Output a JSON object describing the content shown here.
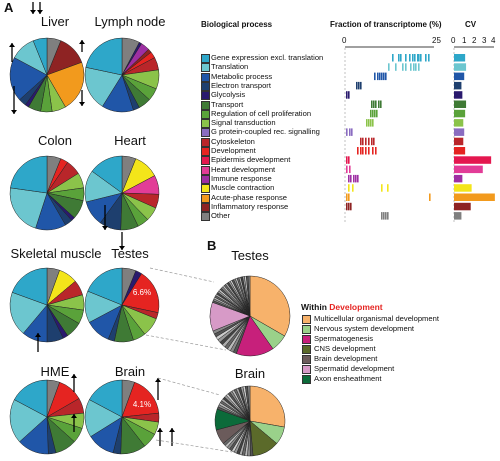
{
  "panel_a": "A",
  "panel_b": "B",
  "tissues": [
    {
      "name": "Liver",
      "label": ""
    },
    {
      "name": "Lymph node",
      "label": ""
    },
    {
      "name": "Colon",
      "label": ""
    },
    {
      "name": "Heart",
      "label": ""
    },
    {
      "name": "Skeletal muscle",
      "label": ""
    },
    {
      "name": "Testes",
      "label": "6.6%"
    },
    {
      "name": "HME",
      "label": ""
    },
    {
      "name": "Brain",
      "label": "4.1%"
    }
  ],
  "table": {
    "col_process": "Biological process",
    "col_fraction": "Fraction of transcriptome (%)",
    "col_cv": "CV",
    "fraction_ticks": [
      "0",
      "25"
    ],
    "cv_ticks": [
      "0",
      "1",
      "2",
      "3",
      "4"
    ]
  },
  "processes": [
    {
      "label": "Gene expression excl. translation",
      "color": "#2ea7c9"
    },
    {
      "label": "Translation",
      "color": "#6cc6cf"
    },
    {
      "label": "Metabolic process",
      "color": "#2056a8"
    },
    {
      "label": "Electron transport",
      "color": "#1e3f6e"
    },
    {
      "label": "Glycolysis",
      "color": "#2a1a6e"
    },
    {
      "label": "Transport",
      "color": "#3f7a35"
    },
    {
      "label": "Regulation of cell proliferation",
      "color": "#5aa23a"
    },
    {
      "label": "Signal transduction",
      "color": "#8bc34a"
    },
    {
      "label": "G protein-coupled rec. signalling",
      "color": "#8a6cc0"
    },
    {
      "label": "Cytoskeleton",
      "color": "#b9262a"
    },
    {
      "label": "Development",
      "color": "#e52421"
    },
    {
      "label": "Epidermis development",
      "color": "#e4174f"
    },
    {
      "label": "Heart development",
      "color": "#e23c97"
    },
    {
      "label": "Immune response",
      "color": "#9e2fa3"
    },
    {
      "label": "Muscle contraction",
      "color": "#f3e51a"
    },
    {
      "label": "Acute-phase response",
      "color": "#f29a1d"
    },
    {
      "label": "Inflammatory response",
      "color": "#8e2323"
    },
    {
      "label": "Other",
      "color": "#7f7f7f"
    }
  ],
  "testes_b": "Testes",
  "brain_b": "Brain",
  "legend": {
    "title_prefix": "Within ",
    "title_highlight": "Development",
    "highlight_color": "#e52421",
    "items": [
      {
        "label": "Multicellular organismal development",
        "color": "#f7b26b"
      },
      {
        "label": "Nervous system development",
        "color": "#9ad18a"
      },
      {
        "label": "Spermatogenesis",
        "color": "#c7207b"
      },
      {
        "label": "CNS development",
        "color": "#5b6a2a"
      },
      {
        "label": "Brain development",
        "color": "#6b5b5b"
      },
      {
        "label": "Spermatid development",
        "color": "#d79ac7"
      },
      {
        "label": "Axon ensheathment",
        "color": "#0c6b3a"
      }
    ]
  }
}
